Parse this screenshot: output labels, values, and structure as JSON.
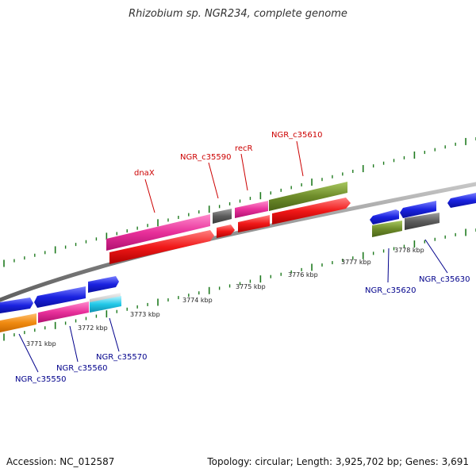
{
  "title": "Rhizobium sp. NGR234, complete genome",
  "footer": {
    "accession": "Accession: NC_012587",
    "stats": "Topology: circular; Length: 3,925,702 bp; Genes: 3,691"
  },
  "colors": {
    "orange": "#f08a10",
    "pink": "#e8309a",
    "blue": "#1a22e0",
    "cyan": "#22c8e8",
    "red": "#f01818",
    "olive": "#6e8c2a",
    "gray": "#5c5c5c",
    "tick": "#1e7a1e",
    "backbone": "#888888",
    "label_red": "#cc0000",
    "label_blue": "#00008b"
  },
  "scale_labels": [
    "3771 kbp",
    "3772 kbp",
    "3773 kbp",
    "3774 kbp",
    "3775 kbp",
    "3776 kbp",
    "3777 kbp",
    "3778 kbp"
  ],
  "gene_labels_red": [
    "dnaX",
    "NGR_c35590",
    "recR",
    "NGR_c35610"
  ],
  "gene_labels_blue": [
    "NGR_c35550",
    "NGR_c35560",
    "NGR_c35570",
    "NGR_c35620",
    "NGR_c35630"
  ]
}
